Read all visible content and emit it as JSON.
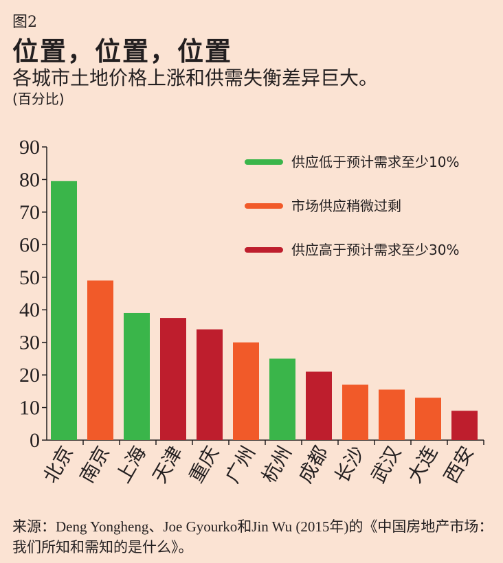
{
  "figure_label": "图2",
  "title": "位置，位置，位置",
  "subtitle": "各城市土地价格上涨和供需失衡差异巨大。",
  "unit": "(百分比)",
  "source": "来源：Deng Yongheng、Joe Gyourko和Jin Wu (2015年)的《中国房地产市场：我们所知和需知的是什么》。",
  "colors": {
    "undersupply": "#3ab54a",
    "slight_oversupply": "#f15a29",
    "oversupply": "#be1e2d"
  },
  "chart_data": {
    "type": "bar",
    "categories": [
      "北京",
      "南京",
      "上海",
      "天津",
      "重庆",
      "广州",
      "杭州",
      "成都",
      "长沙",
      "武汉",
      "大连",
      "西安"
    ],
    "values": [
      79.5,
      49,
      39,
      37.5,
      34,
      30,
      25,
      21,
      17,
      15.5,
      13,
      9
    ],
    "groups": [
      "undersupply",
      "slight_oversupply",
      "undersupply",
      "oversupply",
      "oversupply",
      "slight_oversupply",
      "undersupply",
      "oversupply",
      "slight_oversupply",
      "slight_oversupply",
      "slight_oversupply",
      "oversupply"
    ],
    "ylim": [
      0,
      90
    ],
    "yticks": [
      0,
      10,
      20,
      30,
      40,
      50,
      60,
      70,
      80,
      90
    ],
    "legend_placement": "top-right",
    "legend": [
      {
        "key": "undersupply",
        "label": "供应低于预计需求至少10%"
      },
      {
        "key": "slight_oversupply",
        "label": "市场供应稍微过剩"
      },
      {
        "key": "oversupply",
        "label": "供应高于预计需求至少30%"
      }
    ],
    "grid": false
  }
}
